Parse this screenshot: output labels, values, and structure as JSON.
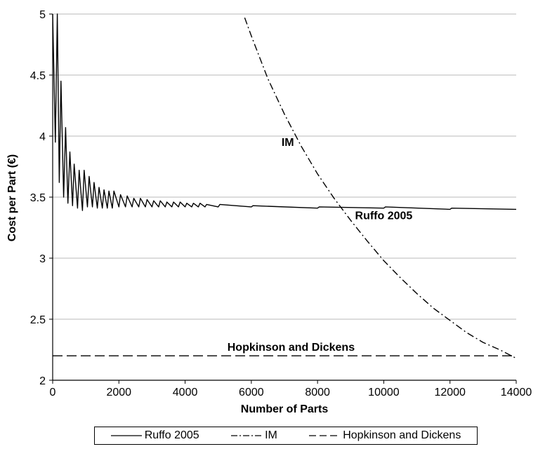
{
  "chart_data": {
    "type": "line",
    "xlabel": "Number of Parts",
    "ylabel": "Cost per Part (€)",
    "xlim": [
      0,
      14000
    ],
    "ylim": [
      2,
      5
    ],
    "xticks": [
      "0",
      "2000",
      "4000",
      "6000",
      "8000",
      "10000",
      "12000",
      "14000"
    ],
    "yticks": [
      "2",
      "2.5",
      "3",
      "3.5",
      "4",
      "4.5",
      "5"
    ],
    "grid": "horizontal",
    "legend_position": "bottom",
    "series": [
      {
        "name": "Ruffo  2005",
        "style": "solid",
        "description_points": [
          [
            0,
            5.0
          ],
          [
            80,
            3.95
          ],
          [
            140,
            5.0
          ],
          [
            200,
            3.62
          ],
          [
            250,
            4.45
          ],
          [
            330,
            3.5
          ],
          [
            390,
            4.07
          ],
          [
            460,
            3.45
          ],
          [
            520,
            3.87
          ],
          [
            600,
            3.43
          ],
          [
            650,
            3.77
          ],
          [
            750,
            3.41
          ],
          [
            800,
            3.72
          ],
          [
            900,
            3.39
          ],
          [
            950,
            3.72
          ],
          [
            1050,
            3.42
          ],
          [
            1100,
            3.67
          ],
          [
            1200,
            3.42
          ],
          [
            1250,
            3.62
          ],
          [
            1350,
            3.41
          ],
          [
            1400,
            3.58
          ],
          [
            1500,
            3.41
          ],
          [
            1550,
            3.56
          ],
          [
            1650,
            3.41
          ],
          [
            1700,
            3.55
          ],
          [
            1800,
            3.41
          ],
          [
            1850,
            3.55
          ],
          [
            2000,
            3.42
          ],
          [
            2050,
            3.52
          ],
          [
            2200,
            3.42
          ],
          [
            2250,
            3.51
          ],
          [
            2400,
            3.42
          ],
          [
            2450,
            3.49
          ],
          [
            2600,
            3.42
          ],
          [
            2650,
            3.49
          ],
          [
            2800,
            3.42
          ],
          [
            2850,
            3.48
          ],
          [
            3000,
            3.42
          ],
          [
            3050,
            3.47
          ],
          [
            3200,
            3.42
          ],
          [
            3250,
            3.47
          ],
          [
            3400,
            3.42
          ],
          [
            3450,
            3.46
          ],
          [
            3600,
            3.42
          ],
          [
            3650,
            3.46
          ],
          [
            3800,
            3.42
          ],
          [
            3850,
            3.46
          ],
          [
            4000,
            3.42
          ],
          [
            4050,
            3.45
          ],
          [
            4200,
            3.42
          ],
          [
            4250,
            3.45
          ],
          [
            4400,
            3.42
          ],
          [
            4450,
            3.45
          ],
          [
            4600,
            3.42
          ],
          [
            4650,
            3.44
          ],
          [
            5000,
            3.42
          ],
          [
            5050,
            3.44
          ],
          [
            6000,
            3.42
          ],
          [
            6050,
            3.43
          ],
          [
            8000,
            3.41
          ],
          [
            8050,
            3.42
          ],
          [
            10000,
            3.41
          ],
          [
            10050,
            3.42
          ],
          [
            12000,
            3.4
          ],
          [
            12050,
            3.41
          ],
          [
            14000,
            3.4
          ]
        ]
      },
      {
        "name": "IM",
        "style": "dashdot",
        "x": [
          5800,
          6000,
          6500,
          7000,
          7500,
          8000,
          8500,
          9000,
          9500,
          10000,
          10500,
          11000,
          11500,
          12000,
          12500,
          13000,
          13500,
          14000
        ],
        "y": [
          4.97,
          4.82,
          4.47,
          4.18,
          3.92,
          3.69,
          3.49,
          3.31,
          3.14,
          2.98,
          2.84,
          2.71,
          2.59,
          2.49,
          2.39,
          2.31,
          2.25,
          2.18
        ]
      },
      {
        "name": "Hopkinson and Dickens",
        "style": "dashed",
        "x": [
          0,
          14000
        ],
        "y": [
          2.2,
          2.2
        ]
      }
    ],
    "annotations": [
      {
        "text": "IM",
        "x": 7100,
        "y": 3.92
      },
      {
        "text": "Ruffo 2005",
        "x": 10000,
        "y": 3.32
      },
      {
        "text": "Hopkinson and Dickens",
        "x": 7200,
        "y": 2.24
      }
    ]
  }
}
